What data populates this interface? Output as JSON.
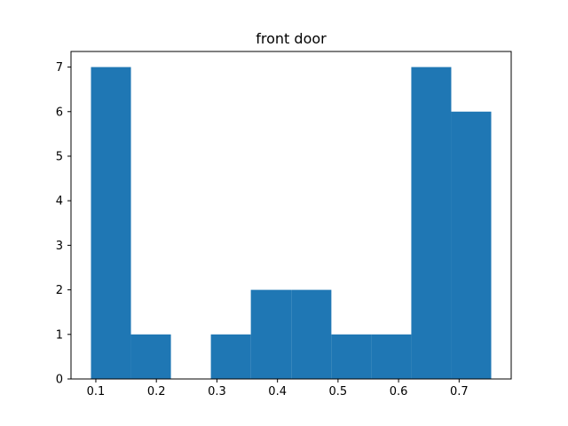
{
  "chart_data": {
    "type": "bar",
    "title": "front door",
    "xlabel": "",
    "ylabel": "",
    "bin_edges": [
      0.092,
      0.158,
      0.224,
      0.29,
      0.356,
      0.423,
      0.489,
      0.555,
      0.621,
      0.687,
      0.753
    ],
    "values": [
      7,
      1,
      0,
      1,
      2,
      2,
      1,
      1,
      7,
      6
    ],
    "xlim": [
      0.059,
      0.786
    ],
    "ylim": [
      0,
      7.35
    ],
    "x_ticks": [
      0.1,
      0.2,
      0.3,
      0.4,
      0.5,
      0.6,
      0.7
    ],
    "x_tick_labels": [
      "0.1",
      "0.2",
      "0.3",
      "0.4",
      "0.5",
      "0.6",
      "0.7"
    ],
    "y_ticks": [
      0,
      1,
      2,
      3,
      4,
      5,
      6,
      7
    ],
    "y_tick_labels": [
      "0",
      "1",
      "2",
      "3",
      "4",
      "5",
      "6",
      "7"
    ],
    "bar_color": "#1f77b4",
    "grid": false,
    "legend": "none"
  }
}
